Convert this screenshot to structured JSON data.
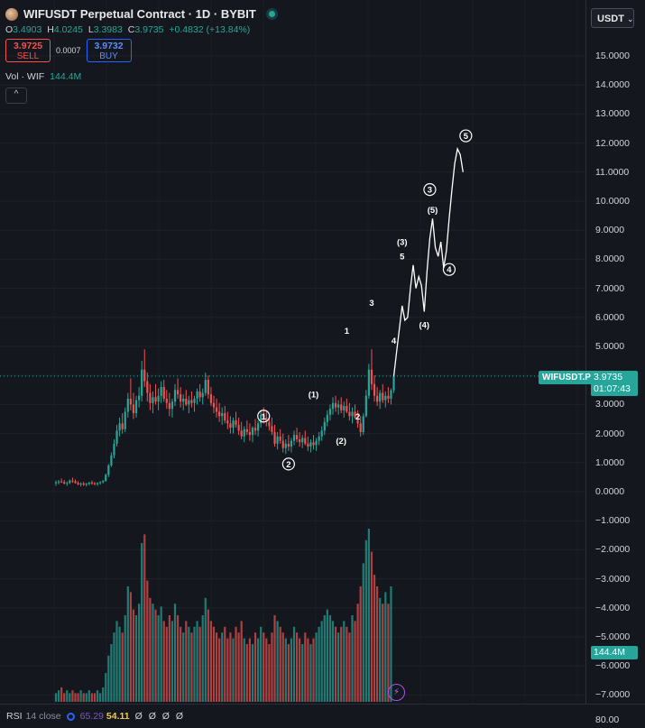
{
  "header": {
    "title": "WIFUSDT Perpetual Contract · 1D · BYBIT",
    "ohlc": {
      "o_label": "O",
      "o": "3.4903",
      "h_label": "H",
      "h": "4.0245",
      "l_label": "L",
      "l": "3.3983",
      "c_label": "C",
      "c": "3.9735",
      "change": "+0.4832 (+13.84%)"
    },
    "sell_price": "3.9725",
    "sell_label": "SELL",
    "spread": "0.0007",
    "buy_price": "3.9732",
    "buy_label": "BUY",
    "vol_label": "Vol · WIF",
    "vol_value": "144.4M",
    "collapse_glyph": "^"
  },
  "currency": {
    "label": "USDT",
    "chevron": "⌄"
  },
  "price_axis_ticks": [
    "15.0000",
    "14.0000",
    "13.0000",
    "12.0000",
    "11.0000",
    "10.0000",
    "9.0000",
    "8.0000",
    "7.0000",
    "6.0000",
    "5.0000",
    "4.0000",
    "3.0000",
    "2.0000",
    "1.0000",
    "0.0000",
    "−1.0000",
    "−2.0000",
    "−3.0000",
    "−4.0000",
    "−5.0000",
    "−6.0000",
    "−7.0000"
  ],
  "last_price": {
    "symbol": "WIFUSDT.P",
    "price": "3.9735",
    "countdown": "01:07:43"
  },
  "volume_tag": "144.4M",
  "bolt_glyph": "⚡",
  "rsi": {
    "label": "RSI",
    "params": "14 close",
    "v1": "65.29",
    "v2": "54.11",
    "empties": "Ø Ø Ø Ø",
    "axis_tick": "80.00"
  },
  "annotations": {
    "circled_1": "1",
    "circled_2": "2",
    "label_1_paren": "(1)",
    "label_2_paren": "(2)",
    "label_1": "1",
    "label_2": "2",
    "label_3": "3",
    "label_4": "4",
    "label_3_paren": "(3)",
    "label_5": "5",
    "label_4_paren": "(4)",
    "circled_3": "3",
    "label_5_paren": "(5)",
    "circled_4": "4",
    "circled_5": "5"
  },
  "colors": {
    "up": "#26a69a",
    "down": "#ef5350",
    "background": "#15171e",
    "accent": "#26a69a"
  },
  "chart_data": {
    "type": "candlestick",
    "title": "WIFUSDT Perpetual Contract · 1D · BYBIT",
    "ylim": [
      -7,
      15.5
    ],
    "candles": [
      [
        0.3,
        0.38,
        0.2,
        0.32
      ],
      [
        0.32,
        0.4,
        0.25,
        0.35
      ],
      [
        0.35,
        0.45,
        0.3,
        0.33
      ],
      [
        0.33,
        0.4,
        0.25,
        0.28
      ],
      [
        0.28,
        0.35,
        0.2,
        0.3
      ],
      [
        0.3,
        0.42,
        0.26,
        0.38
      ],
      [
        0.38,
        0.48,
        0.3,
        0.36
      ],
      [
        0.36,
        0.42,
        0.28,
        0.3
      ],
      [
        0.3,
        0.36,
        0.22,
        0.25
      ],
      [
        0.25,
        0.32,
        0.18,
        0.28
      ],
      [
        0.28,
        0.34,
        0.2,
        0.24
      ],
      [
        0.24,
        0.3,
        0.18,
        0.27
      ],
      [
        0.27,
        0.34,
        0.22,
        0.31
      ],
      [
        0.31,
        0.38,
        0.24,
        0.29
      ],
      [
        0.29,
        0.33,
        0.22,
        0.26
      ],
      [
        0.26,
        0.32,
        0.2,
        0.3
      ],
      [
        0.3,
        0.36,
        0.24,
        0.33
      ],
      [
        0.33,
        0.4,
        0.28,
        0.37
      ],
      [
        0.37,
        0.62,
        0.34,
        0.58
      ],
      [
        0.58,
        0.95,
        0.5,
        0.9
      ],
      [
        0.9,
        1.35,
        0.85,
        1.25
      ],
      [
        1.25,
        1.8,
        1.15,
        1.65
      ],
      [
        1.65,
        2.3,
        1.55,
        2.1
      ],
      [
        2.1,
        2.55,
        1.9,
        2.35
      ],
      [
        2.35,
        2.7,
        2.0,
        2.15
      ],
      [
        2.15,
        2.9,
        2.05,
        2.75
      ],
      [
        2.75,
        3.4,
        2.55,
        3.2
      ],
      [
        3.2,
        3.9,
        2.8,
        3.0
      ],
      [
        3.0,
        3.4,
        2.5,
        2.7
      ],
      [
        2.7,
        3.3,
        2.55,
        3.15
      ],
      [
        3.15,
        3.6,
        2.9,
        3.3
      ],
      [
        3.3,
        4.5,
        3.1,
        4.2
      ],
      [
        4.2,
        4.9,
        3.6,
        3.8
      ],
      [
        3.8,
        4.1,
        3.1,
        3.4
      ],
      [
        3.4,
        3.7,
        2.8,
        3.05
      ],
      [
        3.05,
        3.45,
        2.7,
        3.25
      ],
      [
        3.25,
        3.7,
        3.0,
        3.1
      ],
      [
        3.1,
        3.55,
        2.8,
        3.3
      ],
      [
        3.3,
        3.8,
        3.05,
        3.6
      ],
      [
        3.6,
        3.85,
        3.1,
        3.2
      ],
      [
        3.2,
        3.5,
        2.85,
        3.05
      ],
      [
        3.05,
        3.4,
        2.6,
        2.85
      ],
      [
        2.85,
        3.2,
        2.55,
        3.1
      ],
      [
        3.1,
        3.7,
        2.95,
        3.5
      ],
      [
        3.5,
        3.9,
        3.2,
        3.35
      ],
      [
        3.35,
        3.6,
        2.9,
        3.1
      ],
      [
        3.1,
        3.35,
        2.8,
        3.2
      ],
      [
        3.2,
        3.5,
        2.95,
        3.0
      ],
      [
        3.0,
        3.3,
        2.7,
        3.15
      ],
      [
        3.15,
        3.45,
        2.9,
        3.05
      ],
      [
        3.05,
        3.3,
        2.75,
        3.2
      ],
      [
        3.2,
        3.55,
        3.0,
        3.45
      ],
      [
        3.45,
        3.7,
        3.1,
        3.25
      ],
      [
        3.25,
        3.55,
        3.0,
        3.4
      ],
      [
        3.4,
        4.1,
        3.3,
        3.85
      ],
      [
        3.85,
        4.0,
        3.2,
        3.35
      ],
      [
        3.35,
        3.6,
        2.95,
        3.05
      ],
      [
        3.05,
        3.3,
        2.7,
        2.9
      ],
      [
        2.9,
        3.2,
        2.55,
        2.75
      ],
      [
        2.75,
        3.05,
        2.4,
        2.6
      ],
      [
        2.6,
        2.9,
        2.3,
        2.7
      ],
      [
        2.7,
        2.95,
        2.35,
        2.45
      ],
      [
        2.45,
        2.75,
        2.15,
        2.35
      ],
      [
        2.35,
        2.6,
        2.0,
        2.2
      ],
      [
        2.2,
        2.55,
        2.0,
        2.45
      ],
      [
        2.45,
        2.75,
        2.2,
        2.3
      ],
      [
        2.3,
        2.55,
        1.95,
        2.1
      ],
      [
        2.1,
        2.4,
        1.8,
        1.9
      ],
      [
        1.9,
        2.25,
        1.7,
        2.15
      ],
      [
        2.15,
        2.45,
        1.95,
        2.05
      ],
      [
        2.05,
        2.35,
        1.75,
        1.95
      ],
      [
        1.95,
        2.25,
        1.7,
        2.2
      ],
      [
        2.2,
        2.5,
        1.95,
        2.1
      ],
      [
        2.1,
        2.45,
        1.9,
        2.35
      ],
      [
        2.35,
        2.8,
        2.2,
        2.65
      ],
      [
        2.65,
        2.9,
        2.35,
        2.55
      ],
      [
        2.55,
        2.75,
        2.25,
        2.4
      ],
      [
        2.4,
        2.6,
        2.1,
        2.25
      ],
      [
        2.25,
        2.55,
        1.95,
        2.05
      ],
      [
        2.05,
        2.3,
        1.55,
        1.65
      ],
      [
        1.65,
        2.05,
        1.45,
        1.9
      ],
      [
        1.9,
        2.15,
        1.65,
        1.75
      ],
      [
        1.75,
        2.0,
        1.35,
        1.5
      ],
      [
        1.5,
        1.8,
        1.3,
        1.65
      ],
      [
        1.65,
        1.95,
        1.4,
        1.55
      ],
      [
        1.55,
        1.85,
        1.35,
        1.75
      ],
      [
        1.75,
        2.1,
        1.6,
        1.95
      ],
      [
        1.95,
        2.2,
        1.7,
        1.8
      ],
      [
        1.8,
        2.05,
        1.55,
        1.7
      ],
      [
        1.7,
        1.95,
        1.5,
        1.85
      ],
      [
        1.85,
        2.1,
        1.6,
        1.65
      ],
      [
        1.65,
        1.9,
        1.4,
        1.55
      ],
      [
        1.55,
        1.8,
        1.35,
        1.7
      ],
      [
        1.7,
        1.95,
        1.45,
        1.6
      ],
      [
        1.6,
        1.85,
        1.4,
        1.75
      ],
      [
        1.75,
        2.05,
        1.6,
        1.9
      ],
      [
        1.9,
        2.25,
        1.75,
        2.1
      ],
      [
        2.1,
        2.55,
        1.95,
        2.4
      ],
      [
        2.4,
        2.8,
        2.25,
        2.65
      ],
      [
        2.65,
        3.0,
        2.45,
        2.85
      ],
      [
        2.85,
        3.25,
        2.65,
        3.05
      ],
      [
        3.05,
        3.3,
        2.75,
        2.9
      ],
      [
        2.9,
        3.15,
        2.65,
        3.0
      ],
      [
        3.0,
        3.25,
        2.7,
        2.8
      ],
      [
        2.8,
        3.1,
        2.55,
        2.95
      ],
      [
        2.95,
        3.2,
        2.7,
        2.75
      ],
      [
        2.75,
        3.05,
        2.45,
        2.6
      ],
      [
        2.6,
        2.9,
        2.35,
        2.75
      ],
      [
        2.75,
        3.0,
        2.5,
        2.55
      ],
      [
        2.55,
        2.8,
        2.2,
        2.35
      ],
      [
        2.35,
        2.6,
        1.9,
        2.05
      ],
      [
        2.05,
        2.7,
        1.95,
        2.6
      ],
      [
        2.6,
        3.5,
        2.55,
        3.3
      ],
      [
        3.3,
        4.4,
        3.2,
        4.2
      ],
      [
        4.2,
        4.9,
        3.5,
        3.7
      ],
      [
        3.7,
        4.0,
        3.1,
        3.3
      ],
      [
        3.3,
        3.6,
        2.95,
        3.1
      ],
      [
        3.1,
        3.5,
        2.85,
        3.4
      ],
      [
        3.4,
        3.7,
        3.05,
        3.15
      ],
      [
        3.15,
        3.45,
        2.9,
        3.3
      ],
      [
        3.3,
        3.6,
        3.05,
        3.2
      ],
      [
        3.2,
        3.55,
        3.0,
        3.49
      ],
      [
        3.49,
        4.0245,
        3.3983,
        3.9735
      ]
    ],
    "volumes": [
      3,
      4,
      5,
      3,
      4,
      3,
      4,
      3,
      3,
      4,
      3,
      3,
      4,
      3,
      3,
      4,
      3,
      5,
      10,
      16,
      20,
      24,
      28,
      26,
      24,
      30,
      40,
      38,
      32,
      30,
      34,
      55,
      58,
      42,
      36,
      34,
      32,
      30,
      33,
      28,
      26,
      30,
      28,
      34,
      30,
      26,
      24,
      28,
      26,
      24,
      26,
      28,
      26,
      30,
      36,
      32,
      28,
      26,
      24,
      22,
      24,
      26,
      22,
      24,
      22,
      26,
      24,
      28,
      22,
      20,
      22,
      20,
      24,
      22,
      26,
      24,
      22,
      20,
      24,
      30,
      28,
      26,
      24,
      22,
      20,
      22,
      26,
      24,
      22,
      20,
      24,
      22,
      20,
      22,
      24,
      26,
      28,
      30,
      32,
      30,
      28,
      26,
      24,
      26,
      28,
      26,
      24,
      30,
      28,
      34,
      40,
      48,
      56,
      60,
      52,
      44,
      40,
      36,
      34,
      38,
      34,
      40
    ],
    "projection": [
      [
        122,
        3.97
      ],
      [
        123,
        4.8
      ],
      [
        124,
        5.6
      ],
      [
        125,
        6.4
      ],
      [
        126,
        5.9
      ],
      [
        127,
        6.0
      ],
      [
        128,
        7.0
      ],
      [
        129,
        7.8
      ],
      [
        130,
        7.0
      ],
      [
        131,
        7.4
      ],
      [
        132,
        7.1
      ],
      [
        133,
        6.2
      ],
      [
        134,
        7.6
      ],
      [
        135,
        8.7
      ],
      [
        136,
        9.4
      ],
      [
        137,
        8.4
      ],
      [
        138,
        8.1
      ],
      [
        139,
        8.6
      ],
      [
        140,
        7.7
      ],
      [
        141,
        8.3
      ],
      [
        142,
        9.4
      ],
      [
        143,
        10.4
      ],
      [
        144,
        11.3
      ],
      [
        145,
        11.8
      ],
      [
        146,
        11.6
      ],
      [
        147,
        11.0
      ]
    ],
    "wave_labels": [
      {
        "key": "circled_1",
        "x": 75,
        "y": 2.6,
        "circled": true
      },
      {
        "key": "circled_2",
        "x": 84,
        "y": 0.95,
        "circled": true
      },
      {
        "key": "label_1_paren",
        "x": 93,
        "y": 3.35,
        "circled": false
      },
      {
        "key": "label_2_paren",
        "x": 103,
        "y": 1.75,
        "circled": false
      },
      {
        "key": "label_1",
        "x": 105,
        "y": 5.55,
        "circled": false
      },
      {
        "key": "label_2",
        "x": 109,
        "y": 2.6,
        "circled": false
      },
      {
        "key": "label_3",
        "x": 114,
        "y": 6.5,
        "circled": false
      },
      {
        "key": "label_4",
        "x": 122,
        "y": 5.2,
        "circled": false
      },
      {
        "key": "label_3_paren",
        "x": 125,
        "y": 8.6,
        "circled": false
      },
      {
        "key": "label_5",
        "x": 125,
        "y": 8.1,
        "circled": false
      },
      {
        "key": "label_4_paren",
        "x": 133,
        "y": 5.75,
        "circled": false
      },
      {
        "key": "circled_3",
        "x": 135,
        "y": 10.4,
        "circled": true
      },
      {
        "key": "label_5_paren",
        "x": 136,
        "y": 9.7,
        "circled": false
      },
      {
        "key": "circled_4",
        "x": 142,
        "y": 7.65,
        "circled": true
      },
      {
        "key": "circled_5",
        "x": 148,
        "y": 12.25,
        "circled": true
      }
    ]
  }
}
